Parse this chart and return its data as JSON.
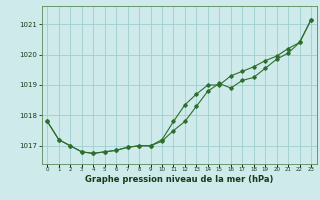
{
  "title": "Graphe pression niveau de la mer (hPa)",
  "background_color": "#ceeaea",
  "grid_color": "#9ecece",
  "line_color": "#2d6e2d",
  "x_labels": [
    "0",
    "1",
    "2",
    "3",
    "4",
    "5",
    "6",
    "7",
    "8",
    "9",
    "10",
    "11",
    "12",
    "13",
    "14",
    "15",
    "16",
    "17",
    "18",
    "19",
    "20",
    "21",
    "22",
    "23"
  ],
  "ylim": [
    1016.4,
    1021.6
  ],
  "yticks": [
    1017,
    1018,
    1019,
    1020,
    1021
  ],
  "series1": [
    1017.8,
    1017.2,
    1017.0,
    1016.8,
    1016.75,
    1016.8,
    1016.85,
    1016.95,
    1017.0,
    1017.0,
    1017.15,
    1017.5,
    1017.8,
    1018.3,
    1018.8,
    1019.05,
    1018.9,
    1019.15,
    1019.25,
    1019.55,
    1019.85,
    1020.05,
    1020.4,
    1021.15
  ],
  "series2": [
    1017.8,
    1017.2,
    1017.0,
    1016.8,
    1016.75,
    1016.8,
    1016.85,
    1016.95,
    1017.0,
    1017.0,
    1017.2,
    1017.8,
    1018.35,
    1018.7,
    1019.0,
    1019.0,
    1019.3,
    1019.45,
    1019.6,
    1019.8,
    1019.95,
    1020.2,
    1020.4,
    1021.15
  ]
}
